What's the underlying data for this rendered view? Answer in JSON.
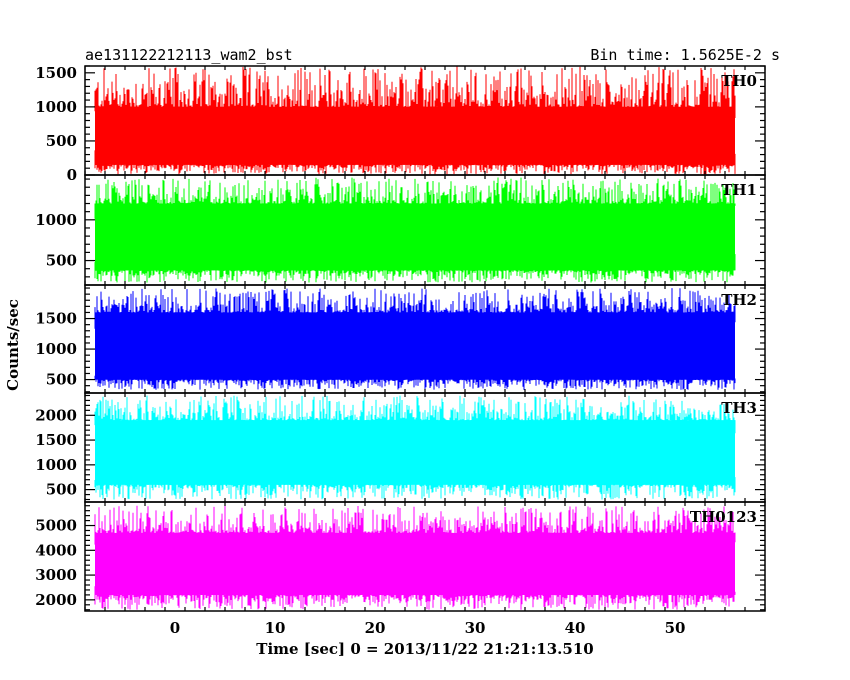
{
  "chart_data": {
    "type": "line",
    "title": "ae131122212113_wam2_bst",
    "subtitle": "Bin time: 1.5625E-2 s",
    "xlabel": "Time [sec] 0 = 2013/11/22 21:21:13.510",
    "ylabel": "Counts/sec",
    "xlim": [
      -9,
      59
    ],
    "x_ticks": [
      0,
      10,
      20,
      30,
      40,
      50
    ],
    "data_x_range": [
      -8,
      56
    ],
    "grid": false,
    "panels": [
      {
        "name": "TH0",
        "color": "#ff0000",
        "ylim": [
          0,
          1600
        ],
        "y_ticks": [
          0,
          500,
          1000,
          1500
        ],
        "y_range": [
          10,
          1600
        ],
        "band": [
          150,
          1000
        ]
      },
      {
        "name": "TH1",
        "color": "#00ff00",
        "ylim": [
          200,
          1550
        ],
        "y_ticks": [
          500,
          1000
        ],
        "y_range": [
          230,
          1520
        ],
        "band": [
          380,
          1200
        ]
      },
      {
        "name": "TH2",
        "color": "#0000ff",
        "ylim": [
          280,
          2050
        ],
        "y_ticks": [
          500,
          1000,
          1500
        ],
        "y_range": [
          330,
          2000
        ],
        "band": [
          500,
          1600
        ]
      },
      {
        "name": "TH3",
        "color": "#00ffff",
        "ylim": [
          250,
          2450
        ],
        "y_ticks": [
          500,
          1000,
          1500,
          2000
        ],
        "y_range": [
          300,
          2400
        ],
        "band": [
          600,
          1900
        ]
      },
      {
        "name": "TH0123",
        "color": "#ff00ff",
        "ylim": [
          1550,
          5950
        ],
        "y_ticks": [
          2000,
          3000,
          4000,
          5000
        ],
        "y_range": [
          1600,
          5800
        ],
        "band": [
          2200,
          4700
        ]
      }
    ]
  }
}
